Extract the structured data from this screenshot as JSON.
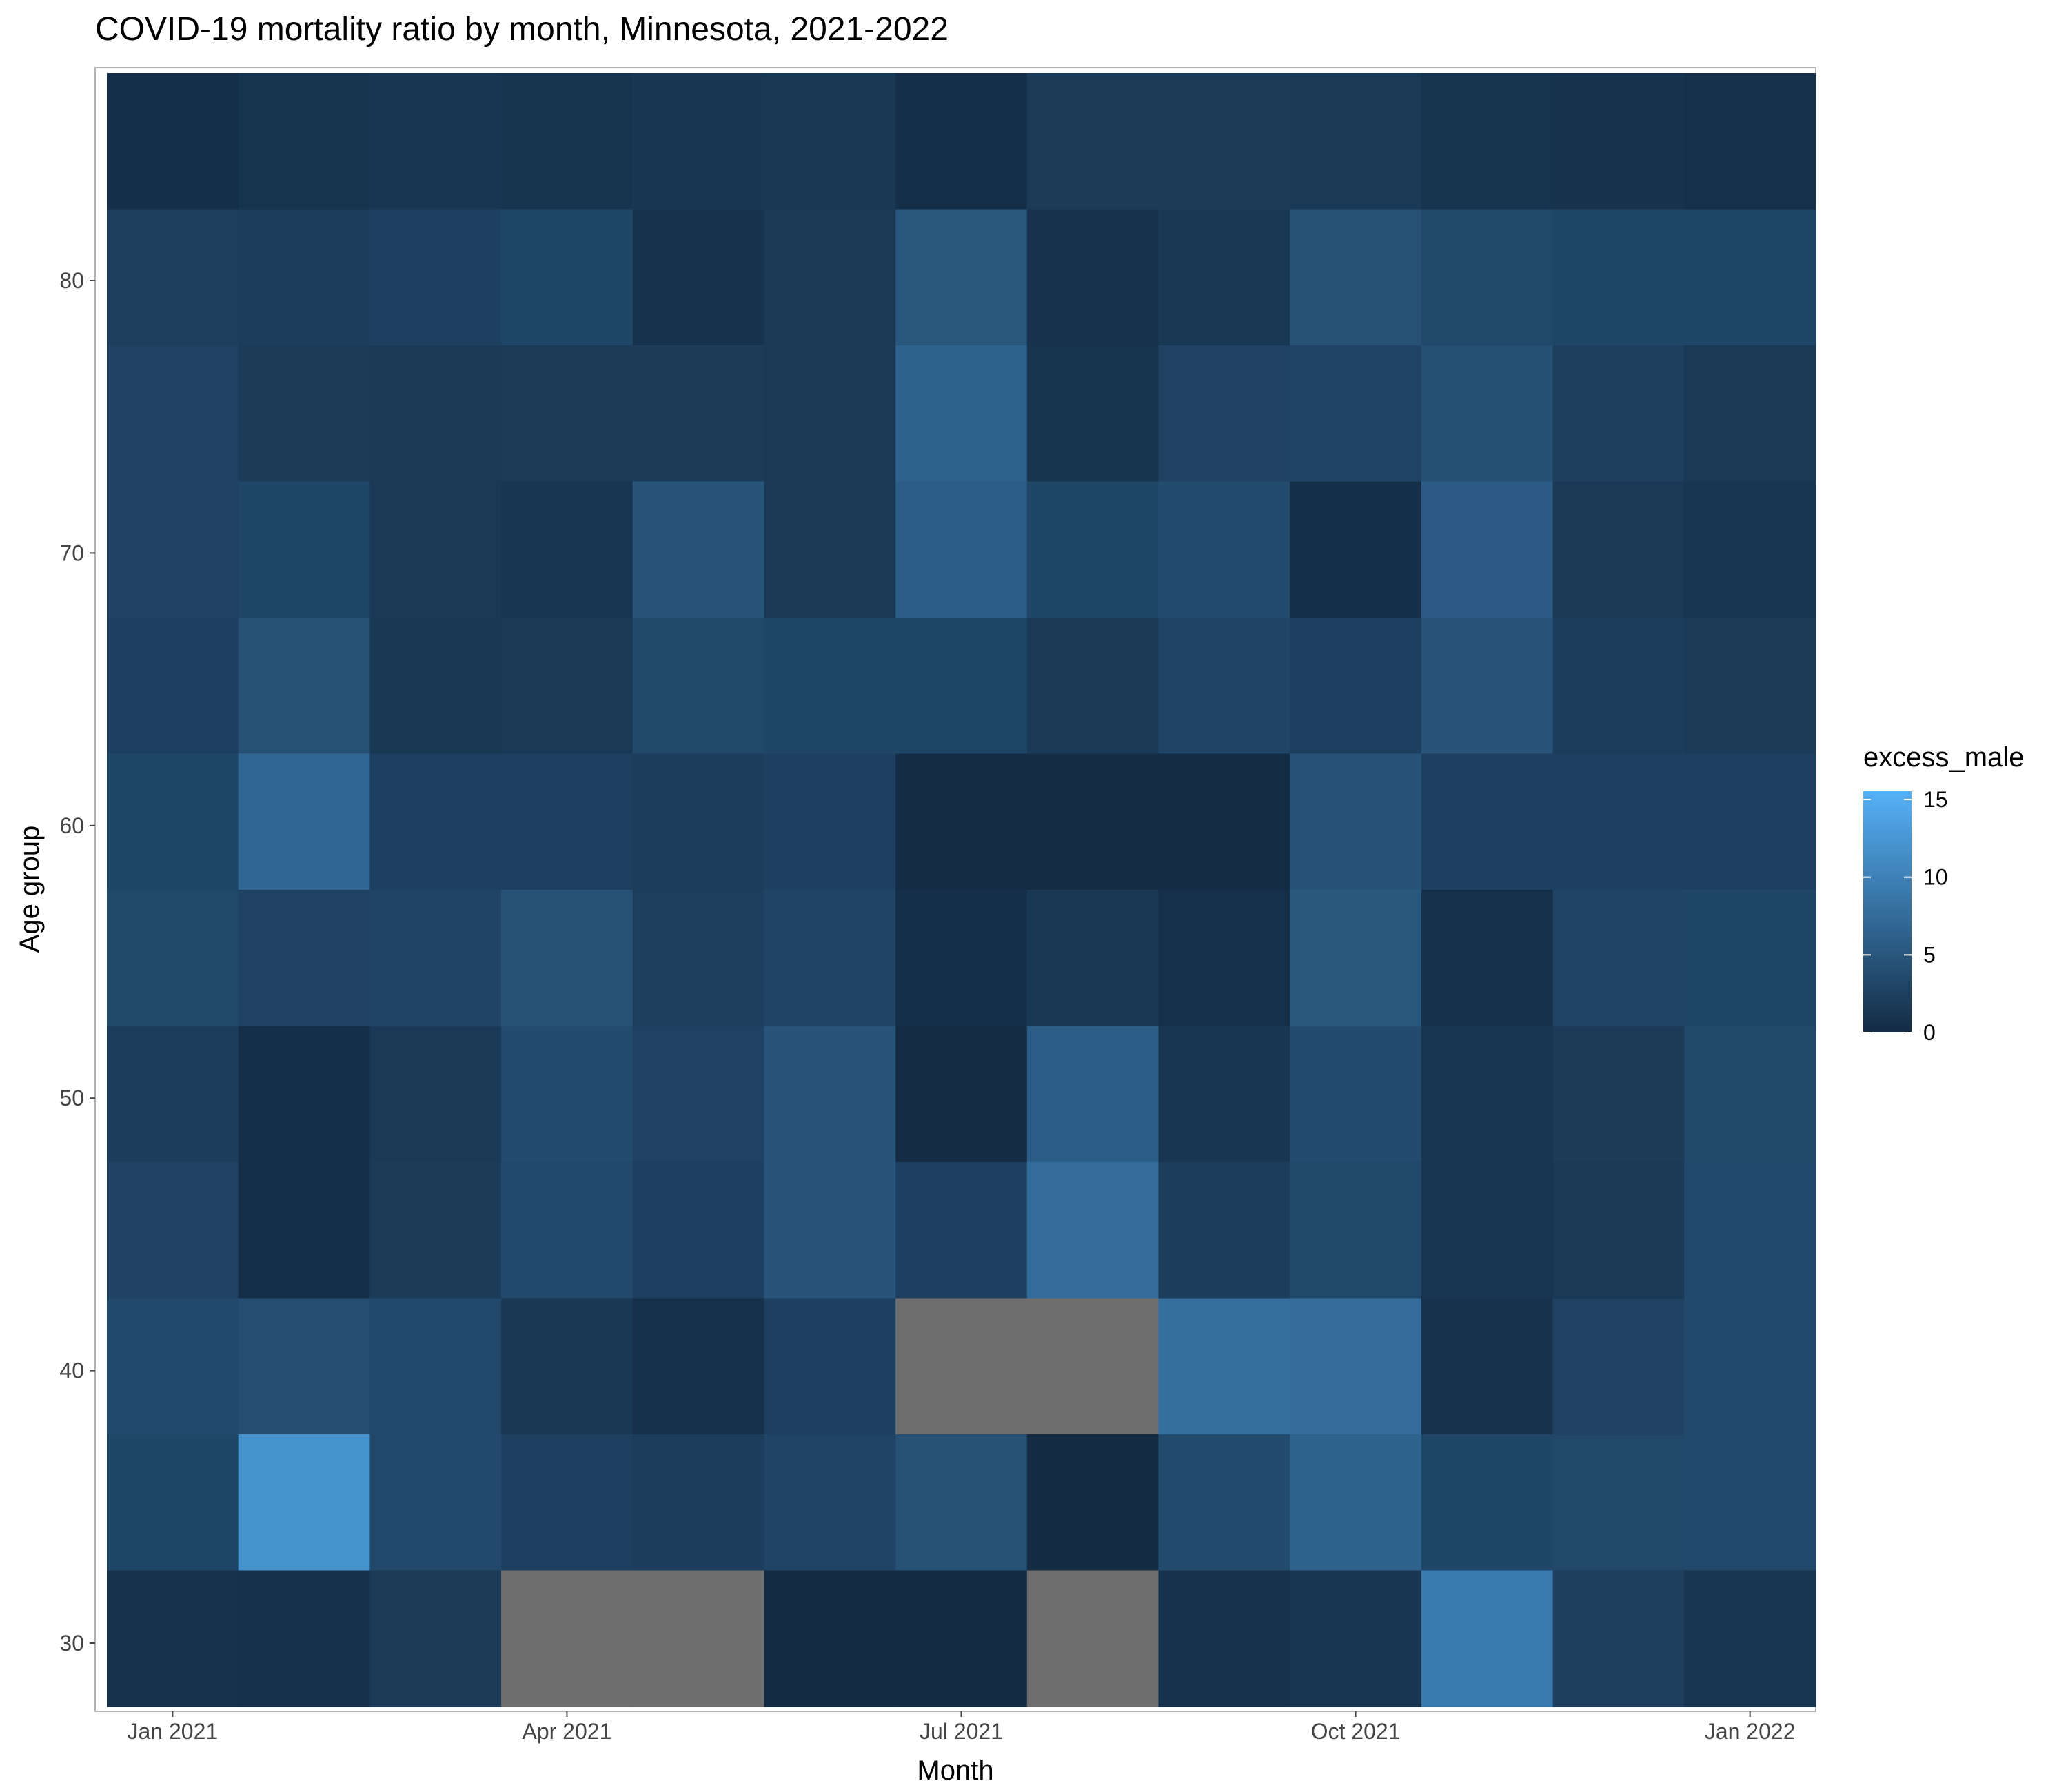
{
  "chart_data": {
    "type": "heatmap",
    "title": "COVID-19 mortality ratio by month, Minnesota, 2021-2022",
    "xlabel": "Month",
    "ylabel": "Age group",
    "x_tick_labels": [
      "Jan 2021",
      "Apr 2021",
      "Jul 2021",
      "Oct 2021",
      "Jan 2022"
    ],
    "y_tick_labels": [
      "30",
      "40",
      "50",
      "60",
      "70",
      "80"
    ],
    "months": [
      "Jan 2021",
      "Feb 2021",
      "Mar 2021",
      "Apr 2021",
      "May 2021",
      "Jun 2021",
      "Jul 2021",
      "Aug 2021",
      "Sep 2021",
      "Oct 2021",
      "Nov 2021",
      "Dec 2021",
      "Jan 2022"
    ],
    "age_groups": [
      85,
      80,
      75,
      70,
      65,
      60,
      55,
      50,
      45,
      40,
      35,
      30
    ],
    "values": [
      [
        0.5,
        1.0,
        1.2,
        1.0,
        1.3,
        1.4,
        0.5,
        1.8,
        1.8,
        1.6,
        1.0,
        0.8,
        0.6
      ],
      [
        2.2,
        2.0,
        2.4,
        3.0,
        0.8,
        1.6,
        4.8,
        0.8,
        1.4,
        4.2,
        3.2,
        3.0,
        3.0
      ],
      [
        2.6,
        1.8,
        1.6,
        1.8,
        1.8,
        1.6,
        6.0,
        1.0,
        2.6,
        2.8,
        4.0,
        2.2,
        1.6
      ],
      [
        2.6,
        3.0,
        1.6,
        1.2,
        4.6,
        1.6,
        5.6,
        3.0,
        3.6,
        0.4,
        5.4,
        1.6,
        1.2
      ],
      [
        2.4,
        4.2,
        1.4,
        1.6,
        3.2,
        3.0,
        3.0,
        1.6,
        2.8,
        2.4,
        4.6,
        2.0,
        1.8
      ],
      [
        3.0,
        6.6,
        2.4,
        2.4,
        2.0,
        2.4,
        0.2,
        0.2,
        0.2,
        4.4,
        2.4,
        2.4,
        2.4
      ],
      [
        3.2,
        2.6,
        2.8,
        4.2,
        2.2,
        2.8,
        0.4,
        1.4,
        0.6,
        5.0,
        0.6,
        2.8,
        3.0
      ],
      [
        2.0,
        0.4,
        1.6,
        3.6,
        2.6,
        4.6,
        0.2,
        5.6,
        1.2,
        3.6,
        1.2,
        1.8,
        3.2
      ],
      [
        2.6,
        0.4,
        1.8,
        3.4,
        2.4,
        4.6,
        2.4,
        7.4,
        2.0,
        3.2,
        1.2,
        1.6,
        3.4
      ],
      [
        3.4,
        3.8,
        3.4,
        1.4,
        0.6,
        2.4,
        null,
        null,
        7.6,
        7.4,
        0.8,
        2.6,
        3.4
      ],
      [
        3.0,
        11.6,
        3.4,
        2.4,
        2.0,
        2.8,
        4.2,
        0.0,
        3.6,
        6.2,
        3.0,
        3.2,
        3.4
      ],
      [
        0.8,
        0.6,
        1.8,
        null,
        null,
        0.0,
        0.0,
        null,
        0.8,
        1.2,
        8.8,
        2.2,
        1.2
      ]
    ],
    "missing_color": "#6E6E6E",
    "legend": {
      "title": "excess_male",
      "breaks": [
        0,
        5,
        10,
        15
      ],
      "labels": [
        "0",
        "5",
        "10",
        "15"
      ],
      "low_color": "#132B43",
      "high_color": "#56B1F7",
      "position": "right"
    },
    "grid": true
  }
}
